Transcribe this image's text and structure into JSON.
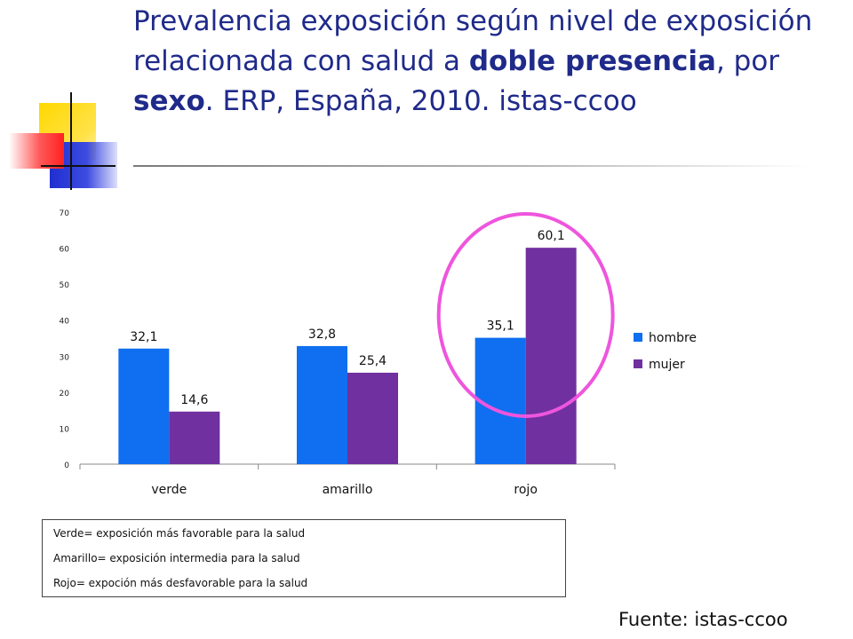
{
  "title": {
    "part1": "Prevalencia exposición según nivel de exposición relacionada con salud a ",
    "bold1": "doble presencia",
    "part2": ", por ",
    "bold2": "sexo",
    "part3": ". ERP, España, 2010. istas-ccoo"
  },
  "colors": {
    "hombre": "#0f6ff0",
    "mujer": "#7030a0",
    "highlight": "#ee55dd"
  },
  "chart_data": {
    "type": "bar",
    "title": "",
    "categories": [
      "verde",
      "amarillo",
      "rojo"
    ],
    "series": [
      {
        "name": "hombre",
        "values": [
          32.1,
          32.8,
          35.1
        ],
        "labels": [
          "32,1",
          "32,8",
          "35,1"
        ]
      },
      {
        "name": "mujer",
        "values": [
          14.6,
          25.4,
          60.1
        ],
        "labels": [
          "14,6",
          "25,4",
          "60,1"
        ]
      }
    ],
    "yticks": [
      0,
      10,
      20,
      30,
      40,
      50,
      60,
      70
    ],
    "ylim": [
      0,
      70
    ],
    "legend_position": "right",
    "highlighted_category": "rojo"
  },
  "legend_notes": [
    "Verde= exposición más favorable para la salud",
    "Amarillo= exposición intermedia para la salud",
    "Rojo= expoción más desfavorable para la salud"
  ],
  "source": "Fuente: istas-ccoo"
}
